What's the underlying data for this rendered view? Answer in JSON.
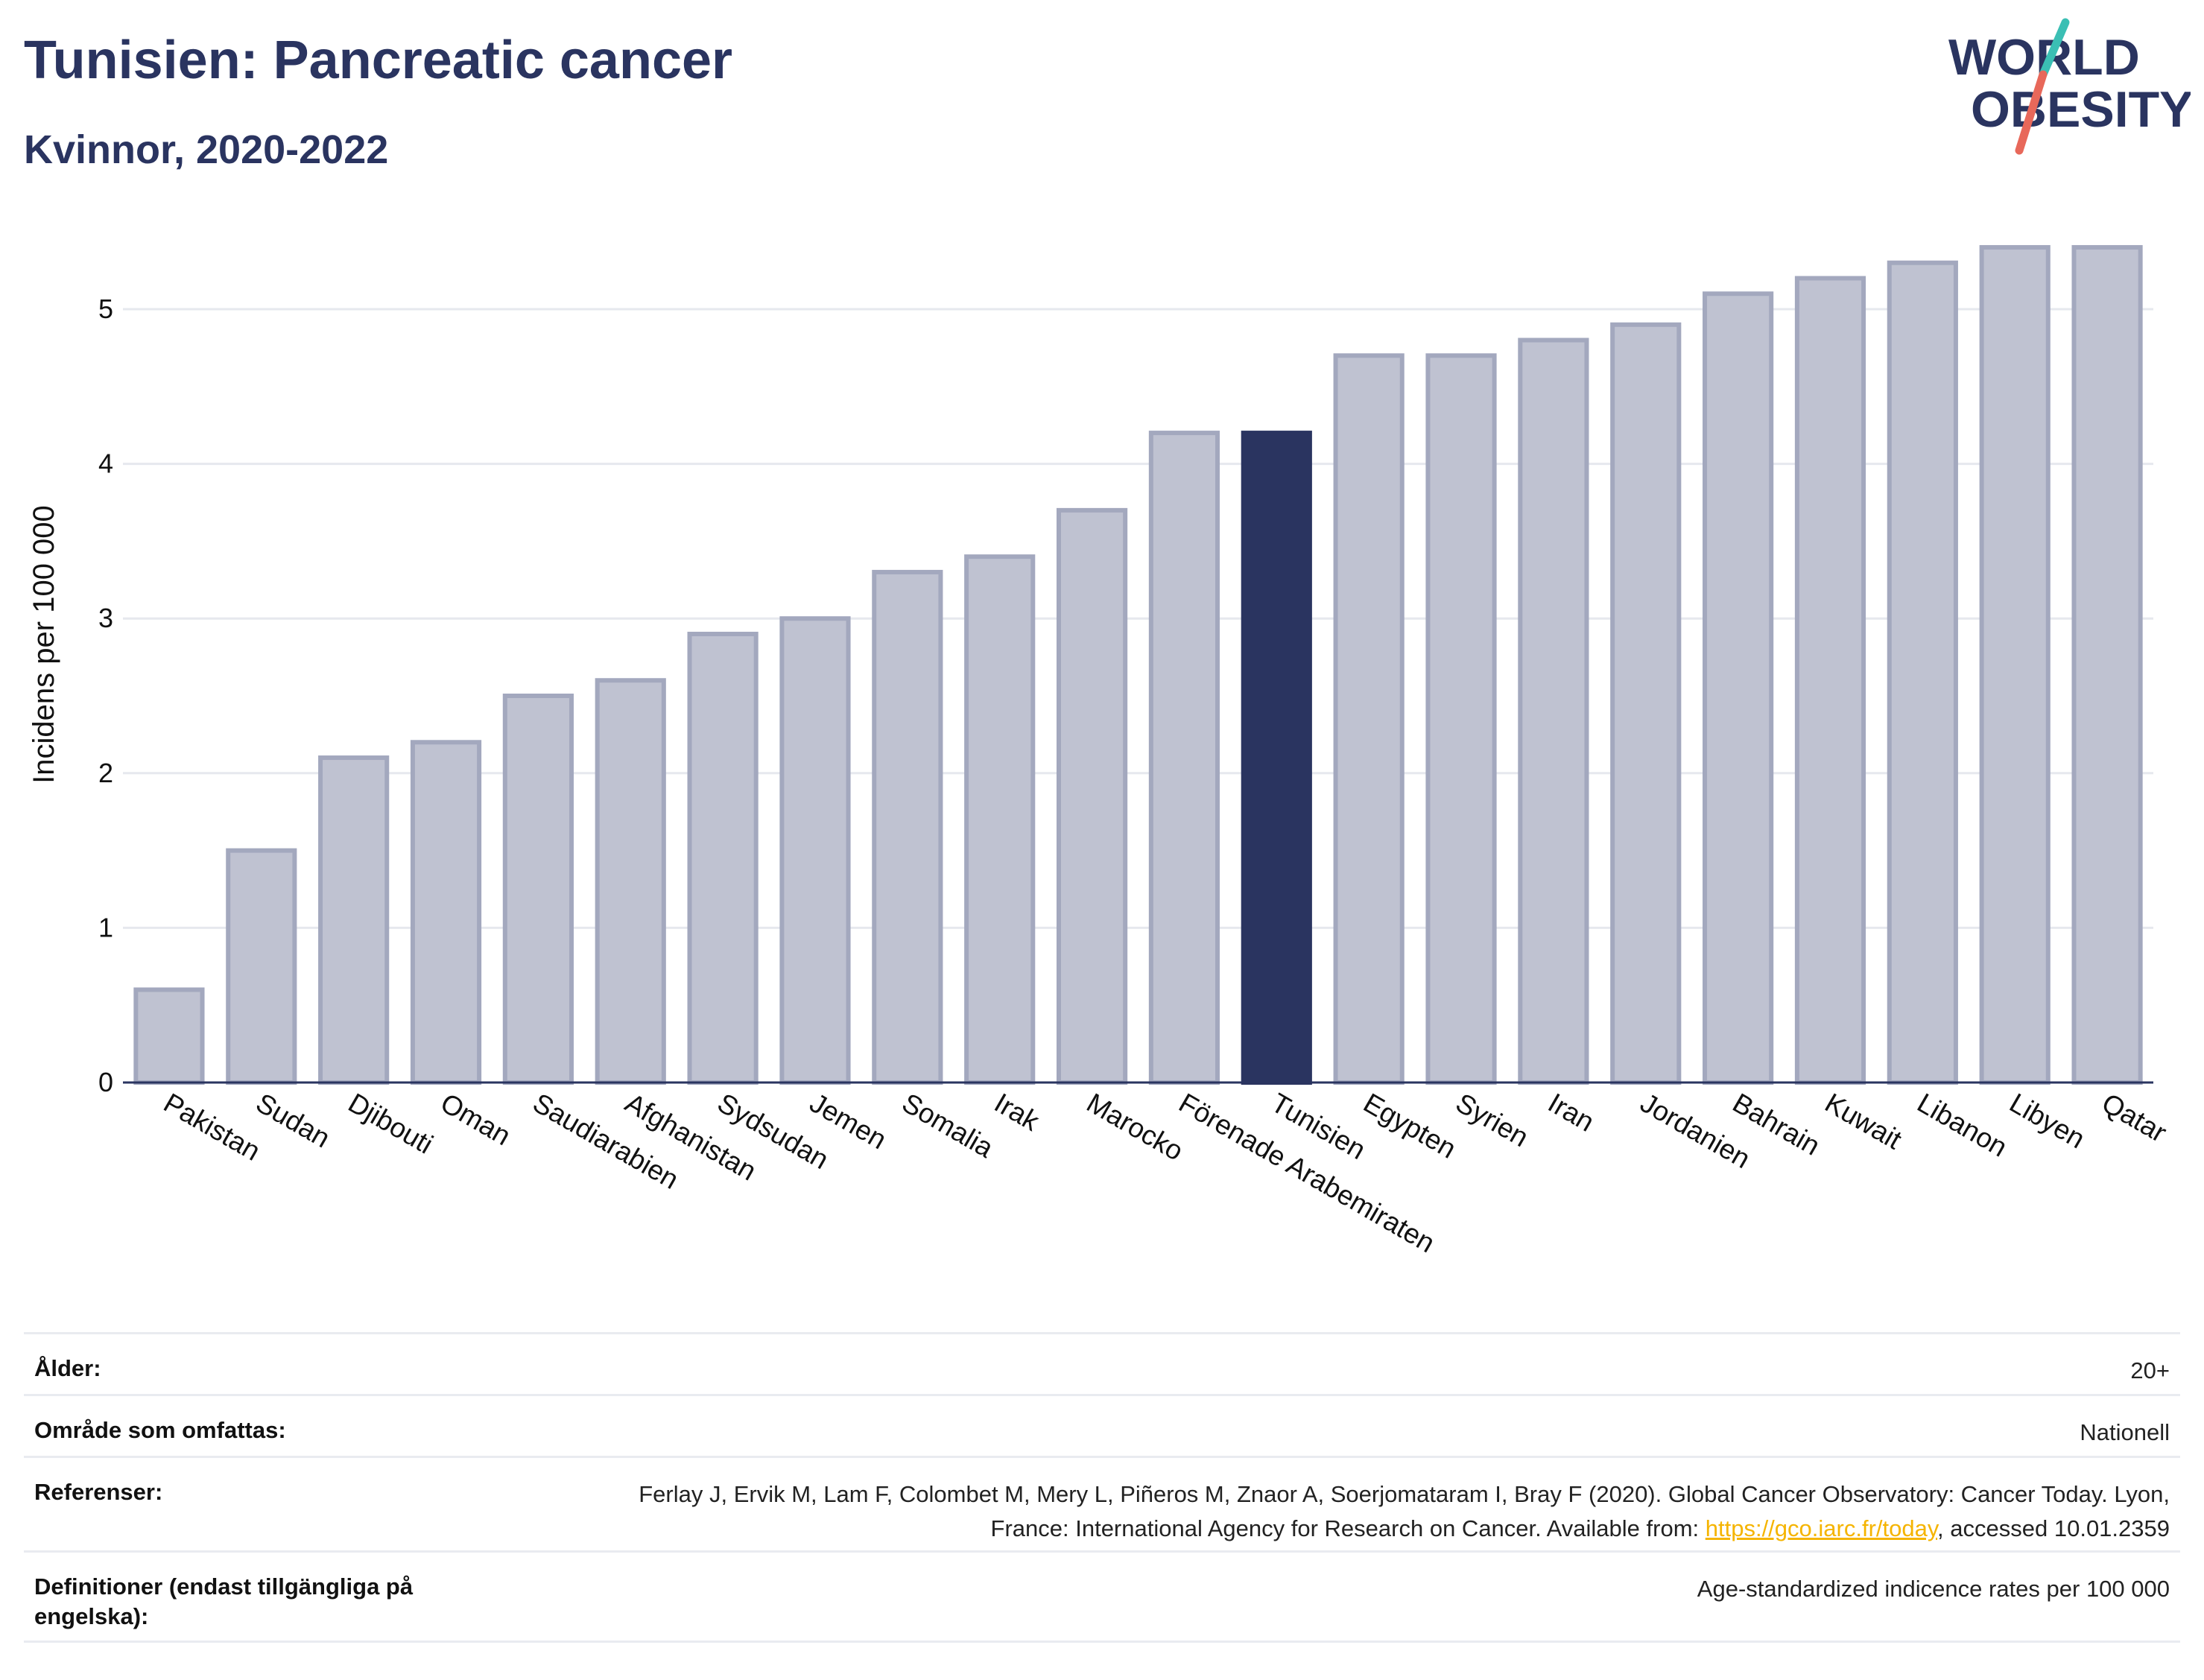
{
  "header": {
    "title": "Tunisien: Pancreatic cancer",
    "subtitle": "Kvinnor, 2020-2022"
  },
  "logo": {
    "line1": "WORLD",
    "line2": "OBESITY"
  },
  "colors": {
    "primary": "#2a3460",
    "bar_fill": "#bfc2d1",
    "bar_stroke": "#a3a8be",
    "highlight": "#2a3460",
    "logo_teal": "#3bbfb4",
    "logo_coral": "#e8685a",
    "link": "#f5b400"
  },
  "chart_data": {
    "type": "bar",
    "ylabel": "Incidens per 100 000",
    "ylim": [
      0,
      5.5
    ],
    "yticks": [
      0,
      1,
      2,
      3,
      4,
      5
    ],
    "highlight": "Tunisien",
    "categories": [
      "Pakistan",
      "Sudan",
      "Djibouti",
      "Oman",
      "Saudiarabien",
      "Afghanistan",
      "Sydsudan",
      "Jemen",
      "Somalia",
      "Irak",
      "Marocko",
      "Förenade Arabemiraten",
      "Tunisien",
      "Egypten",
      "Syrien",
      "Iran",
      "Jordanien",
      "Bahrain",
      "Kuwait",
      "Libanon",
      "Libyen",
      "Qatar"
    ],
    "values": [
      0.6,
      1.5,
      2.1,
      2.2,
      2.5,
      2.6,
      2.9,
      3.0,
      3.3,
      3.4,
      3.7,
      4.2,
      4.2,
      4.7,
      4.7,
      4.8,
      4.9,
      5.1,
      5.2,
      5.3,
      5.4,
      5.4
    ]
  },
  "meta": {
    "age_label": "Ålder:",
    "age_value": "20+",
    "area_label": "Område som omfattas:",
    "area_value": "Nationell",
    "ref_label": "Referenser:",
    "ref_text_1": "Ferlay J, Ervik M, Lam F, Colombet M, Mery L, Piñeros M, Znaor A, Soerjomataram I, Bray F (2020). Global Cancer Observatory: Cancer Today. Lyon, France: International Agency for Research on Cancer. Available from: ",
    "ref_link": "https://gco.iarc.fr/today",
    "ref_text_2": ", accessed 10.01.2359",
    "def_label": "Definitioner (endast tillgängliga på engelska):",
    "def_value": "Age-standardized indicence rates per 100 000"
  }
}
